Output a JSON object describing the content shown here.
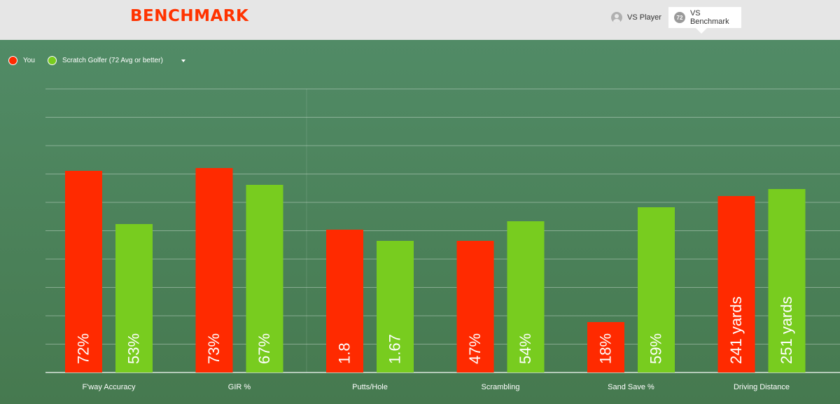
{
  "header": {
    "title": "BENCHMARK",
    "toggle_vs_player": "VS Player",
    "toggle_vs_benchmark": "VS Benchmark",
    "benchmark_icon_label": "72",
    "active_toggle": "VS Benchmark"
  },
  "legend": {
    "you_label": "You",
    "benchmark_label": "Scratch Golfer (72 Avg or better)"
  },
  "colors": {
    "you": "#ff2a00",
    "benchmark": "#78cc1f",
    "brand": "#ff3300"
  },
  "chart_data": {
    "type": "bar",
    "categories": [
      "F'way Accuracy",
      "GIR %",
      "Putts/Hole",
      "Scrambling",
      "Sand Save %",
      "Driving Distance"
    ],
    "series": [
      {
        "name": "You",
        "value_labels": [
          "72%",
          "73%",
          "1.8",
          "47%",
          "18%",
          "241 yards"
        ],
        "relative_heights": [
          0.72,
          0.73,
          0.51,
          0.47,
          0.18,
          0.63
        ]
      },
      {
        "name": "Scratch Golfer (72 Avg or better)",
        "value_labels": [
          "53%",
          "67%",
          "1.67",
          "54%",
          "59%",
          "251 yards"
        ],
        "relative_heights": [
          0.53,
          0.67,
          0.47,
          0.54,
          0.59,
          0.655
        ]
      }
    ],
    "ylim": [
      0,
      1
    ],
    "grid": true,
    "legend_position": "top-left"
  }
}
